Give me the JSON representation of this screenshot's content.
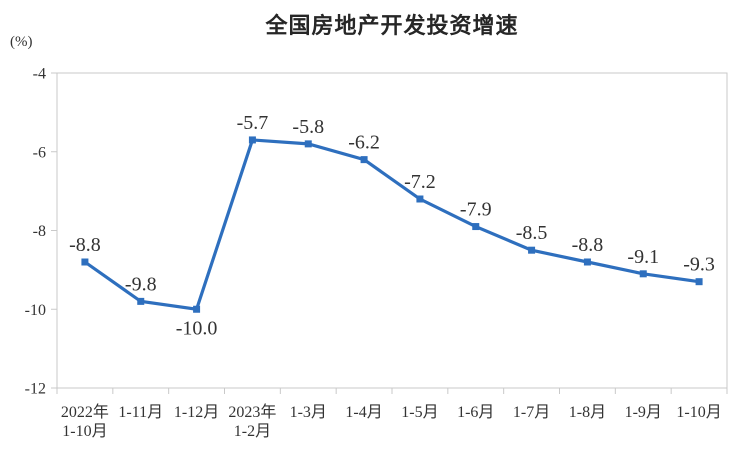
{
  "header": {
    "title": "全国房地产开发投资增速",
    "unit_label": "(%)"
  },
  "chart_data": {
    "type": "line",
    "title": "全国房地产开发投资增速",
    "unit": "(%)",
    "categories": [
      [
        "2022年",
        "1-10月"
      ],
      [
        "1-11月"
      ],
      [
        "1-12月"
      ],
      [
        "2023年",
        "1-2月"
      ],
      [
        "1-3月"
      ],
      [
        "1-4月"
      ],
      [
        "1-5月"
      ],
      [
        "1-6月"
      ],
      [
        "1-7月"
      ],
      [
        "1-8月"
      ],
      [
        "1-9月"
      ],
      [
        "1-10月"
      ]
    ],
    "values": [
      -8.8,
      -9.8,
      -10.0,
      -5.7,
      -5.8,
      -6.2,
      -7.2,
      -7.9,
      -8.5,
      -8.8,
      -9.1,
      -9.3
    ],
    "labels": [
      "-8.8",
      "-9.8",
      "-10.0",
      "-5.7",
      "-5.8",
      "-6.2",
      "-7.2",
      "-7.9",
      "-8.5",
      "-8.8",
      "-9.1",
      "-9.3"
    ],
    "label_below_index": 2,
    "y_ticks": [
      -4,
      -6,
      -8,
      -10,
      -12
    ],
    "ylim": [
      -12,
      -4
    ],
    "grid": false,
    "legend": "none",
    "line_color": "#2e6fbe",
    "marker": "square",
    "axis_color": "#c9c9c9",
    "text_color": "#333333"
  }
}
